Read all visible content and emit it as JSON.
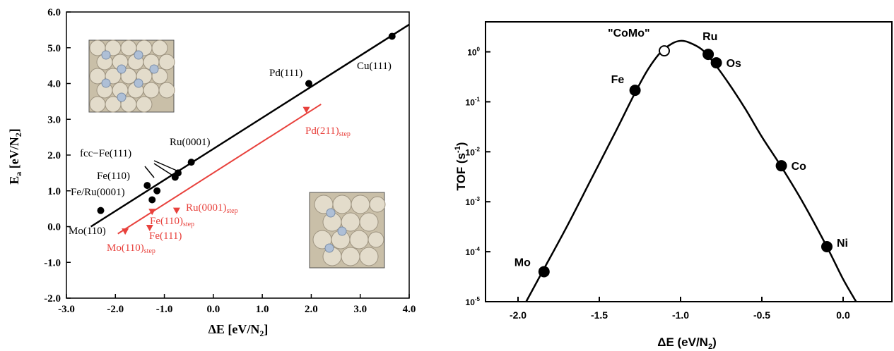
{
  "chart_data": [
    {
      "type": "scatter",
      "xlabel": "ΔE [eV/N2]",
      "ylabel": "Ea [eV/N2]",
      "xlim": [
        -3.0,
        4.0
      ],
      "ylim": [
        -2.0,
        6.0
      ],
      "x_ticks": [
        "-3.0",
        "-2.0",
        "-1.0",
        "0.0",
        "1.0",
        "2.0",
        "3.0",
        "4.0"
      ],
      "y_ticks": [
        "-2.0",
        "-1.0",
        "0.0",
        "1.0",
        "2.0",
        "3.0",
        "4.0",
        "5.0",
        "6.0"
      ],
      "x_tick_values": [
        -3,
        -2,
        -1,
        0,
        1,
        2,
        3,
        4
      ],
      "y_tick_values": [
        -2,
        -1,
        0,
        1,
        2,
        3,
        4,
        5,
        6
      ],
      "colors": {
        "terrace": "#000000",
        "step": "#e8413c"
      },
      "series": [
        {
          "points": [
            {
              "x": -2.3,
              "y": 0.45
            },
            {
              "x": -1.35,
              "y": 1.15
            },
            {
              "x": -1.25,
              "y": 0.75
            },
            {
              "x": -1.15,
              "y": 1.0
            },
            {
              "x": -0.78,
              "y": 1.38
            },
            {
              "x": -0.72,
              "y": 1.5
            },
            {
              "x": -0.45,
              "y": 1.8
            },
            {
              "x": 1.95,
              "y": 4.0
            },
            {
              "x": 3.65,
              "y": 5.32
            }
          ],
          "fit": [
            [
              -2.5,
              0.0
            ],
            [
              4.0,
              5.65
            ]
          ]
        },
        {
          "points": [
            {
              "x": -1.8,
              "y": -0.15
            },
            {
              "x": -1.3,
              "y": -0.05
            },
            {
              "x": -1.25,
              "y": 0.4
            },
            {
              "x": -0.75,
              "y": 0.43
            },
            {
              "x": 1.9,
              "y": 3.25
            }
          ],
          "fit": [
            [
              -1.95,
              -0.2
            ],
            [
              2.2,
              3.42
            ]
          ]
        }
      ],
      "annotations": [
        {
          "text": "Mo(110)",
          "color": "#000000"
        },
        {
          "text": "Fe/Ru(0001)",
          "color": "#000000"
        },
        {
          "text": "Fe(110)",
          "color": "#000000"
        },
        {
          "text": "fcc−Fe(111)",
          "color": "#000000"
        },
        {
          "text": "Ru(0001)",
          "color": "#000000"
        },
        {
          "text": "Pd(111)",
          "color": "#000000"
        },
        {
          "text": "Cu(111)",
          "color": "#000000"
        },
        {
          "text": "Pd(211)",
          "sub": "step",
          "color": "#e8413c"
        },
        {
          "text": "Ru(0001)",
          "sub": "step",
          "color": "#e8413c"
        },
        {
          "text": "Fe(110)",
          "sub": "step",
          "color": "#e8413c"
        },
        {
          "text": "Fe(111)",
          "color": "#e8413c"
        },
        {
          "text": "Mo(110)",
          "sub": "step",
          "color": "#e8413c"
        }
      ]
    },
    {
      "type": "line",
      "xlabel": "ΔE (eV/N2)",
      "ylabel": "TOF (s-1)",
      "xlim": [
        -2.2,
        0.3
      ],
      "y_scale": "log",
      "ylim_exponent": [
        -5,
        0.6
      ],
      "x_ticks": [
        "-2.0",
        "-1.5",
        "-1.0",
        "-0.5",
        "0.0"
      ],
      "x_tick_values": [
        -2.0,
        -1.5,
        -1.0,
        -0.5,
        0.0
      ],
      "y_ticks": [
        "10-5",
        "10-4",
        "10-3",
        "10-2",
        "10-1",
        "100"
      ],
      "y_tick_exponents": [
        -5,
        -4,
        -3,
        -2,
        -1,
        0
      ],
      "curve": [
        [
          -1.95,
          -5.0
        ],
        [
          -1.85,
          -4.4
        ],
        [
          -1.7,
          -3.5
        ],
        [
          -1.55,
          -2.55
        ],
        [
          -1.4,
          -1.6
        ],
        [
          -1.28,
          -0.82
        ],
        [
          -1.2,
          -0.35
        ],
        [
          -1.12,
          0.0
        ],
        [
          -1.05,
          0.17
        ],
        [
          -1.0,
          0.22
        ],
        [
          -0.95,
          0.19
        ],
        [
          -0.87,
          0.05
        ],
        [
          -0.8,
          -0.2
        ],
        [
          -0.7,
          -0.65
        ],
        [
          -0.6,
          -1.15
        ],
        [
          -0.5,
          -1.7
        ],
        [
          -0.38,
          -2.3
        ],
        [
          -0.25,
          -3.0
        ],
        [
          -0.1,
          -3.9
        ],
        [
          0.0,
          -4.55
        ],
        [
          0.08,
          -5.0
        ]
      ],
      "points": [
        {
          "label": "Mo",
          "x": -1.84,
          "y_exp": -4.4,
          "filled": true
        },
        {
          "label": "Fe",
          "x": -1.28,
          "y_exp": -0.77,
          "filled": true
        },
        {
          "label": "\"CoMo\"",
          "x": -1.1,
          "y_exp": 0.02,
          "filled": false
        },
        {
          "label": "Ru",
          "x": -0.83,
          "y_exp": -0.05,
          "filled": true
        },
        {
          "label": "Os",
          "x": -0.78,
          "y_exp": -0.22,
          "filled": true
        },
        {
          "label": "Co",
          "x": -0.38,
          "y_exp": -2.28,
          "filled": true
        },
        {
          "label": "Ni",
          "x": -0.1,
          "y_exp": -3.9,
          "filled": true
        }
      ]
    }
  ]
}
